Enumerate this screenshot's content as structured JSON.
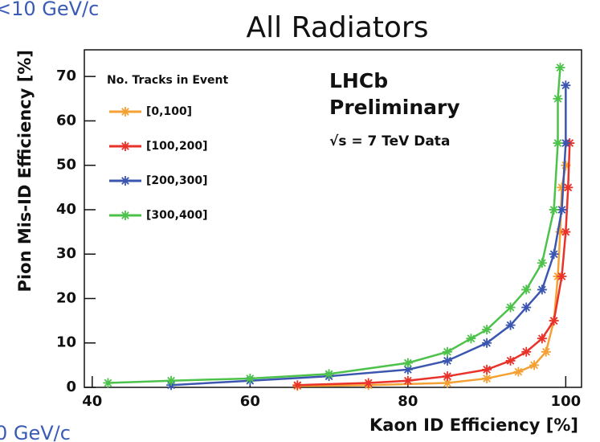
{
  "slide_texts": [
    "<10 GeV/c",
    "0 GeV/c"
  ],
  "chart_data": {
    "type": "line",
    "title": "All Radiators",
    "x_label": "Kaon ID Efficiency [%]",
    "y_label": "Pion Mis-ID Efficiency [%]",
    "legend_title": "No. Tracks in Event",
    "annotations": [
      "LHCb",
      "Preliminary",
      "√s = 7 TeV Data"
    ],
    "xlim": [
      39,
      102
    ],
    "ylim": [
      0,
      76
    ],
    "xticks": [
      40,
      60,
      80,
      100
    ],
    "yticks": [
      0,
      10,
      20,
      30,
      40,
      50,
      60,
      70
    ],
    "series": [
      {
        "name": "[0,100]",
        "color": "#f5a033",
        "x": [
          66,
          75,
          85,
          90,
          94,
          96,
          97.5,
          98.5,
          99,
          99.3,
          99.5,
          100
        ],
        "values": [
          0.3,
          0.5,
          1,
          2,
          3.5,
          5,
          8,
          15,
          25,
          35,
          45,
          50
        ]
      },
      {
        "name": "[100,200]",
        "color": "#e8322a",
        "x": [
          66,
          75,
          80,
          85,
          90,
          93,
          95,
          97,
          98.5,
          99.5,
          100,
          100.3,
          100.5
        ],
        "values": [
          0.5,
          1,
          1.5,
          2.5,
          4,
          6,
          8,
          11,
          15,
          25,
          35,
          45,
          55
        ]
      },
      {
        "name": "[200,300]",
        "color": "#3a56b0",
        "x": [
          50,
          60,
          70,
          80,
          85,
          90,
          93,
          95,
          97,
          98.5,
          99.5,
          100,
          100
        ],
        "values": [
          0.5,
          1.5,
          2.5,
          4,
          6,
          10,
          14,
          18,
          22,
          30,
          40,
          55,
          68
        ]
      },
      {
        "name": "[300,400]",
        "color": "#4cc24a",
        "x": [
          42,
          50,
          60,
          70,
          80,
          85,
          88,
          90,
          93,
          95,
          97,
          98.5,
          99,
          99,
          99.3
        ],
        "values": [
          1,
          1.5,
          2,
          3,
          5.5,
          8,
          11,
          13,
          18,
          22,
          28,
          40,
          55,
          65,
          72
        ]
      }
    ]
  }
}
